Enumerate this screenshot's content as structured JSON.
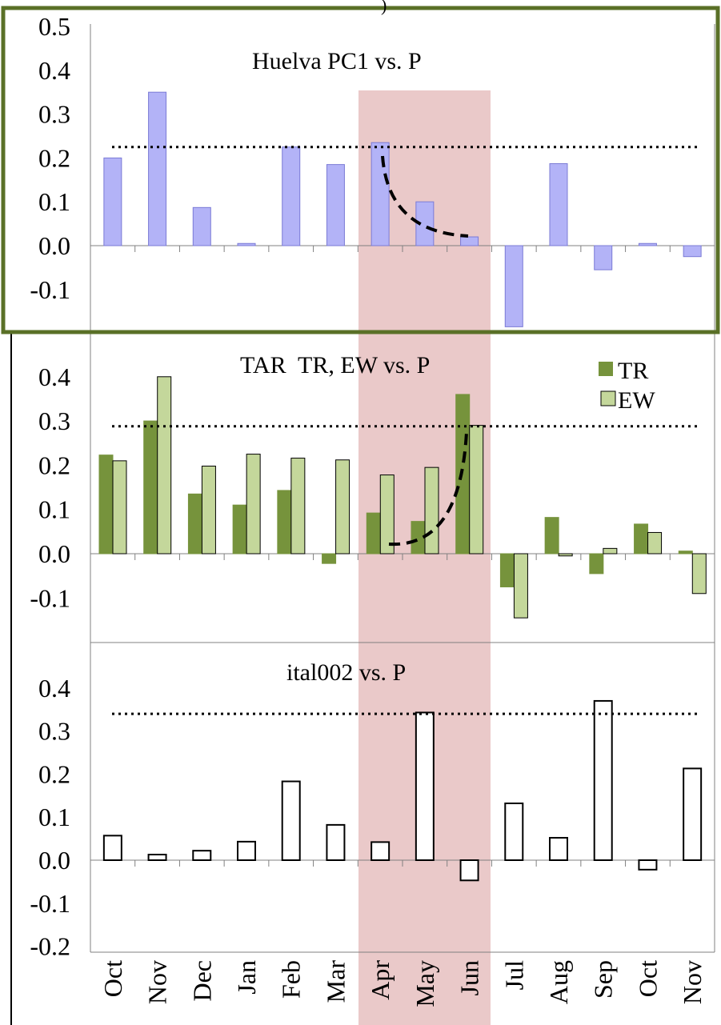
{
  "chart_data": [
    {
      "type": "bar",
      "title": "Huelva PC1 vs. P",
      "categories": [
        "Oct",
        "Nov",
        "Dec",
        "Jan",
        "Feb",
        "Mar",
        "Apr",
        "May",
        "Jun",
        "Jul",
        "Aug",
        "Sep",
        "Oct",
        "Nov"
      ],
      "series": [
        {
          "values": [
            0.2,
            0.35,
            0.087,
            0.005,
            0.225,
            0.185,
            0.235,
            0.1,
            0.02,
            -0.185,
            0.187,
            -0.055,
            0.005,
            -0.025
          ],
          "color": "#b3b3f7"
        }
      ],
      "yticks": [
        "0.5",
        "0.4",
        "0.3",
        "0.2",
        "0.1",
        "0.0",
        "-0.1"
      ],
      "ylim": [
        -0.19,
        0.5
      ],
      "significance_line": 0.225,
      "trend": "dashed-curve-decreasing",
      "frame_color": "#5a7027"
    },
    {
      "type": "bar",
      "title": "TAR  TR, EW vs. P",
      "categories": [
        "Oct",
        "Nov",
        "Dec",
        "Jan",
        "Feb",
        "Mar",
        "Apr",
        "May",
        "Jun",
        "Jul",
        "Aug",
        "Sep",
        "Oct",
        "Nov"
      ],
      "series": [
        {
          "name": "TR",
          "values": [
            0.223,
            0.3,
            0.135,
            0.11,
            0.143,
            -0.022,
            0.092,
            0.073,
            0.36,
            -0.075,
            0.082,
            -0.045,
            0.067,
            0.006
          ],
          "color": "#76933c"
        },
        {
          "name": "EW",
          "values": [
            0.21,
            0.4,
            0.198,
            0.225,
            0.216,
            0.212,
            0.178,
            0.195,
            0.29,
            -0.145,
            -0.005,
            0.012,
            0.048,
            -0.09
          ],
          "color": "#c4d79b"
        }
      ],
      "legend": {
        "position": "top-right",
        "entries": [
          "TR",
          "EW"
        ]
      },
      "yticks": [
        "0.4",
        "0.3",
        "0.2",
        "0.1",
        "0.0",
        "-0.1"
      ],
      "ylim": [
        -0.2,
        0.5
      ],
      "significance_line": 0.288,
      "trend": "dashed-curve-increasing"
    },
    {
      "type": "bar",
      "title": "ital002 vs. P",
      "categories": [
        "Oct",
        "Nov",
        "Dec",
        "Jan",
        "Feb",
        "Mar",
        "Apr",
        "May",
        "Jun",
        "Jul",
        "Aug",
        "Sep",
        "Oct",
        "Nov"
      ],
      "series": [
        {
          "values": [
            0.057,
            0.013,
            0.022,
            0.043,
            0.183,
            0.082,
            0.042,
            0.343,
            -0.047,
            0.132,
            0.052,
            0.37,
            -0.022,
            0.213
          ],
          "color": "#ffffff"
        }
      ],
      "yticks": [
        "0.4",
        "0.3",
        "0.2",
        "0.1",
        "0.0",
        "-0.1",
        "-0.2"
      ],
      "ylim": [
        -0.2,
        0.5
      ],
      "significance_line": 0.34
    }
  ],
  "highlight": {
    "from": "Apr",
    "to": "Jun",
    "color": "#eac9c9"
  },
  "xtick_labels": [
    "Oct",
    "Nov",
    "Dec",
    "Jan",
    "Feb",
    "Mar",
    "Apr",
    "May",
    "Jun",
    "Jul",
    "Aug",
    "Sep",
    "Oct",
    "Nov"
  ],
  "top_fragment": ")"
}
